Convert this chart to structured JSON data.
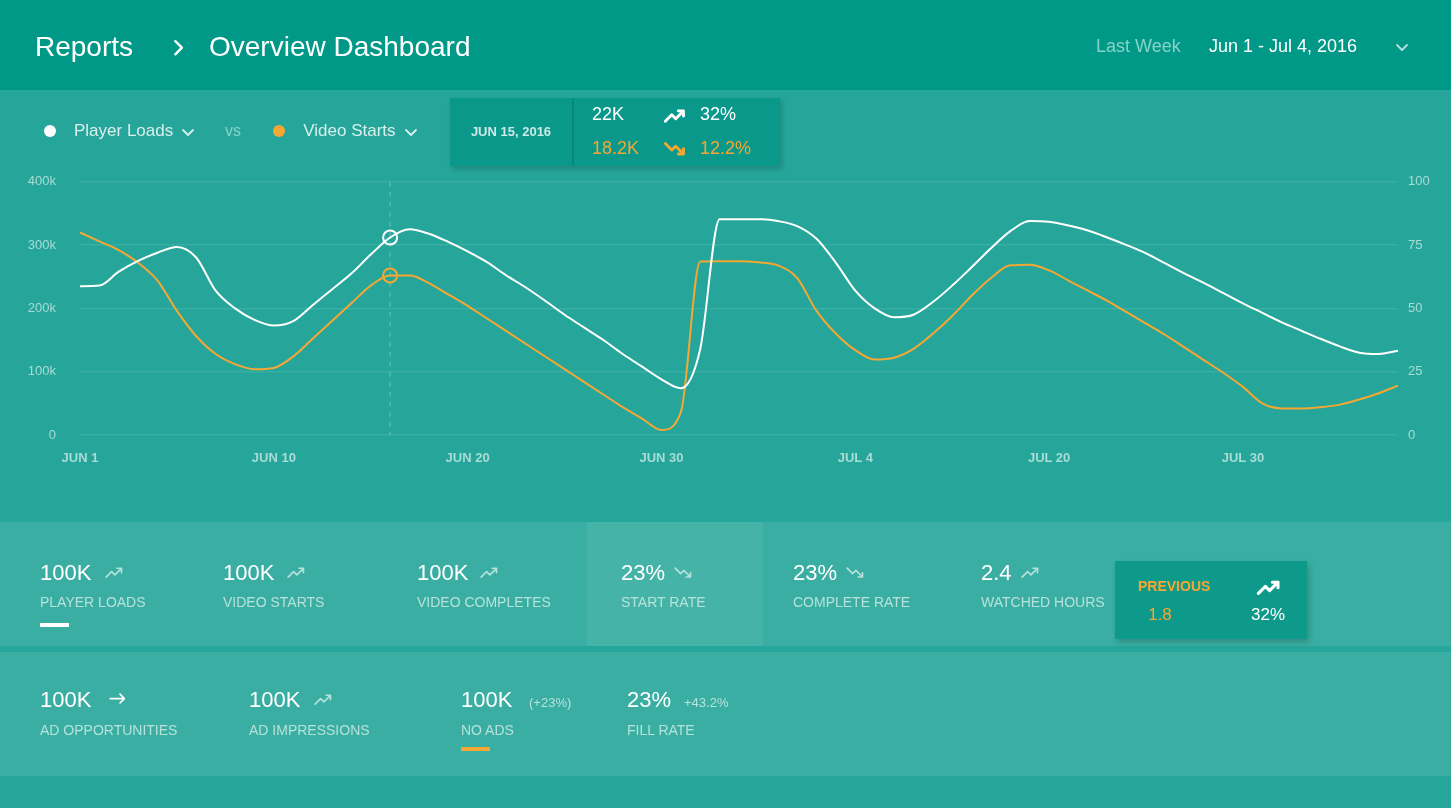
{
  "chart_data": {
    "type": "line",
    "title": "Overview Dashboard",
    "categories": [
      "JUN 1",
      null,
      null,
      null,
      null,
      null,
      null,
      null,
      null,
      null,
      "JUN 10",
      null,
      null,
      null,
      null,
      null,
      null,
      null,
      null,
      null,
      "JUN 20",
      null,
      null,
      null,
      null,
      null,
      null,
      null,
      null,
      null,
      "JUN 30",
      null,
      null,
      null,
      null,
      null,
      null,
      null,
      null,
      null,
      "JUL 4",
      null,
      null,
      null,
      null,
      null,
      null,
      null,
      null,
      null,
      "JUL 20",
      null,
      null,
      null,
      null,
      null,
      null,
      null,
      null,
      null,
      "JUL 30",
      null,
      null,
      null,
      null,
      null,
      null,
      null,
      null
    ],
    "series": [
      {
        "name": "Player Loads",
        "color": "#ffffff",
        "values": [
          235,
          236,
          258,
          275,
          288,
          297,
          280,
          228,
          200,
          182,
          173,
          180,
          205,
          230,
          255,
          285,
          312,
          325,
          318,
          305,
          290,
          273,
          252,
          233,
          212,
          190,
          170,
          150,
          128,
          108,
          88,
          74,
          136,
          341,
          341,
          341,
          338,
          330,
          310,
          272,
          228,
          200,
          186,
          190,
          210,
          236,
          265,
          295,
          322,
          338,
          337,
          331,
          323,
          312,
          300,
          287,
          271,
          255,
          240,
          224,
          208,
          193,
          178,
          165,
          152,
          140,
          130,
          128,
          133
        ]
      },
      {
        "name": "Video Starts",
        "color": "#f5a733",
        "axis": "y2",
        "values": [
          80,
          76.5,
          73,
          68,
          61,
          49,
          39,
          32,
          28,
          26,
          26.5,
          31,
          38,
          45,
          52,
          59,
          63,
          63,
          60,
          55.5,
          51,
          46,
          41,
          36,
          31,
          26,
          21,
          16,
          11,
          6.5,
          2,
          9,
          68.5,
          68.6,
          68.6,
          68.2,
          67,
          62,
          49,
          40,
          33.5,
          29.8,
          30.5,
          34,
          40,
          47,
          55,
          62,
          67,
          67.2,
          65,
          61,
          57,
          53,
          48.5,
          44,
          39.5,
          34.5,
          29.5,
          24.5,
          19,
          12.5,
          10.5,
          10.5,
          11,
          12,
          14,
          16.5,
          19.5
        ]
      }
    ],
    "ylim": [
      0,
      400
    ],
    "yticks": [
      0,
      {
        "value": 100,
        "label": "100k"
      },
      {
        "value": 200,
        "label": "200k"
      },
      {
        "value": 300,
        "label": "300k"
      },
      {
        "value": 400,
        "label": "400k"
      }
    ],
    "y2lim": [
      0,
      100
    ],
    "y2ticks": [
      0,
      25,
      50,
      75,
      100
    ],
    "grid": "y",
    "legend": "top left",
    "line_style": "solid",
    "annotations": [
      "Reports",
      "Last Week",
      "Jun 1 - Jul 4, 2016",
      "vs",
      "JUN 15, 2016",
      "22K",
      "32%",
      "18.2K",
      "12.2%",
      "100K",
      "PLAYER LOADS",
      "100K",
      "VIDEO STARTS",
      "100K",
      "VIDEO COMPLETES",
      "23%",
      "START RATE",
      "23%",
      "COMPLETE RATE",
      "2.4",
      "WATCHED HOURS",
      "PREVIOUS",
      "1.8",
      "32%",
      "100K",
      "AD OPPORTUNITIES",
      "100K",
      "AD IMPRESSIONS",
      "100K",
      "(+23%)",
      "NO ADS",
      "23%",
      "+43.2%",
      "FILL RATE"
    ]
  }
}
